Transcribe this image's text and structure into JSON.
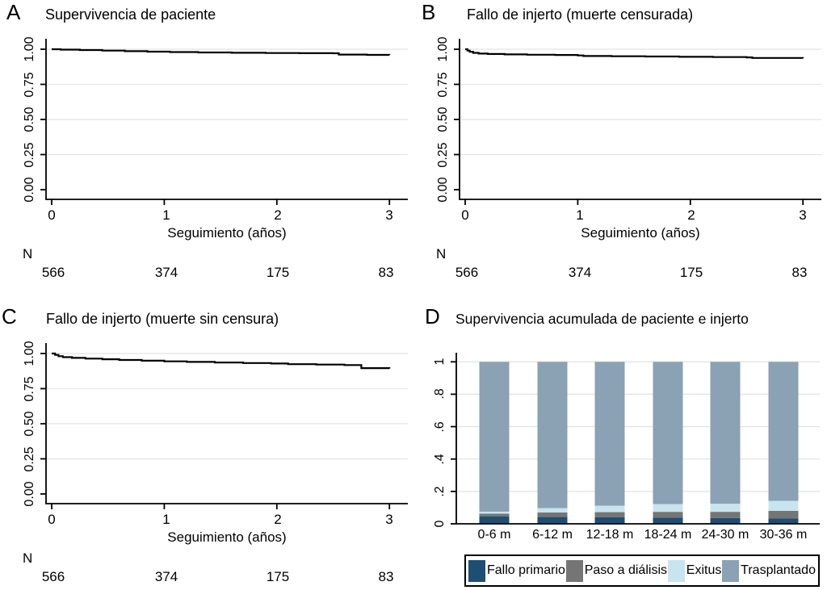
{
  "chart_data": [
    {
      "type": "line",
      "letter": "A",
      "title": "Supervivencia de paciente",
      "xlabel": "Seguimiento (años)",
      "xlim": [
        0,
        3
      ],
      "ylim": [
        0,
        1
      ],
      "x_tick_labels": [
        "0",
        "1",
        "2",
        "3"
      ],
      "y_tick_labels": [
        "0.00",
        "0.25",
        "0.50",
        "0.75",
        "1.00"
      ],
      "grid": "horizontal",
      "risk_table": {
        "label": "N",
        "counts": [
          "566",
          "374",
          "175",
          "83"
        ]
      },
      "step_points": [
        [
          0,
          1.0
        ],
        [
          0.08,
          0.997
        ],
        [
          0.25,
          0.994
        ],
        [
          0.45,
          0.99
        ],
        [
          0.65,
          0.986
        ],
        [
          0.85,
          0.983
        ],
        [
          1.05,
          0.98
        ],
        [
          1.3,
          0.977
        ],
        [
          1.6,
          0.975
        ],
        [
          1.9,
          0.973
        ],
        [
          2.2,
          0.972
        ],
        [
          2.5,
          0.971
        ],
        [
          2.55,
          0.962
        ],
        [
          2.8,
          0.96
        ],
        [
          3,
          0.959
        ]
      ]
    },
    {
      "type": "line",
      "letter": "B",
      "title": "Fallo de injerto (muerte censurada)",
      "xlabel": "Seguimiento (años)",
      "xlim": [
        0,
        3
      ],
      "ylim": [
        0,
        1
      ],
      "x_tick_labels": [
        "0",
        "1",
        "2",
        "3"
      ],
      "y_tick_labels": [
        "0.00",
        "0.25",
        "0.50",
        "0.75",
        "1.00"
      ],
      "grid": "horizontal",
      "risk_table": {
        "label": "N",
        "counts": [
          "566",
          "374",
          "175",
          "83"
        ]
      },
      "step_points": [
        [
          0,
          1.0
        ],
        [
          0.02,
          0.99
        ],
        [
          0.04,
          0.982
        ],
        [
          0.07,
          0.974
        ],
        [
          0.12,
          0.969
        ],
        [
          0.2,
          0.966
        ],
        [
          0.35,
          0.963
        ],
        [
          0.55,
          0.961
        ],
        [
          0.8,
          0.959
        ],
        [
          1.0,
          0.956
        ],
        [
          1.05,
          0.952
        ],
        [
          1.3,
          0.95
        ],
        [
          1.6,
          0.948
        ],
        [
          1.9,
          0.946
        ],
        [
          2.2,
          0.944
        ],
        [
          2.5,
          0.942
        ],
        [
          2.55,
          0.938
        ],
        [
          3,
          0.936
        ]
      ]
    },
    {
      "type": "line",
      "letter": "C",
      "title": "Fallo de injerto (muerte sin censura)",
      "xlabel": "Seguimiento (años)",
      "xlim": [
        0,
        3
      ],
      "ylim": [
        0,
        1
      ],
      "x_tick_labels": [
        "0",
        "1",
        "2",
        "3"
      ],
      "y_tick_labels": [
        "0.00",
        "0.25",
        "0.50",
        "0.75",
        "1.00"
      ],
      "grid": "horizontal",
      "risk_table": {
        "label": "N",
        "counts": [
          "566",
          "374",
          "175",
          "83"
        ]
      },
      "step_points": [
        [
          0,
          1.0
        ],
        [
          0.03,
          0.99
        ],
        [
          0.06,
          0.981
        ],
        [
          0.1,
          0.974
        ],
        [
          0.18,
          0.969
        ],
        [
          0.3,
          0.964
        ],
        [
          0.45,
          0.959
        ],
        [
          0.6,
          0.954
        ],
        [
          0.8,
          0.949
        ],
        [
          1.0,
          0.944
        ],
        [
          1.2,
          0.94
        ],
        [
          1.45,
          0.936
        ],
        [
          1.7,
          0.932
        ],
        [
          1.95,
          0.929
        ],
        [
          2.1,
          0.924
        ],
        [
          2.35,
          0.921
        ],
        [
          2.6,
          0.918
        ],
        [
          2.75,
          0.896
        ],
        [
          3,
          0.893
        ]
      ]
    },
    {
      "type": "bar",
      "letter": "D",
      "title": "Supervivencia acumulada de paciente e injerto",
      "stacked": true,
      "ylim": [
        0,
        1
      ],
      "y_tick_labels": [
        "0",
        ".2",
        ".4",
        ".6",
        ".8",
        "1"
      ],
      "grid": "horizontal",
      "legend_position": "bottom",
      "categories": [
        "0-6 m",
        "6-12 m",
        "12-18 m",
        "18-24 m",
        "24-30 m",
        "30-36 m"
      ],
      "series": [
        {
          "name": "Fallo primario",
          "color": "#1d4e74",
          "values": [
            0.045,
            0.042,
            0.04,
            0.038,
            0.036,
            0.034
          ]
        },
        {
          "name": "Paso a diálisis",
          "color": "#757575",
          "values": [
            0.018,
            0.028,
            0.032,
            0.036,
            0.038,
            0.046
          ]
        },
        {
          "name": "Exitus",
          "color": "#c8e4ef",
          "values": [
            0.012,
            0.027,
            0.04,
            0.048,
            0.05,
            0.062
          ]
        },
        {
          "name": "Trasplantado",
          "color": "#8ba1b4",
          "values": [
            0.925,
            0.903,
            0.888,
            0.878,
            0.876,
            0.858
          ]
        }
      ]
    }
  ]
}
